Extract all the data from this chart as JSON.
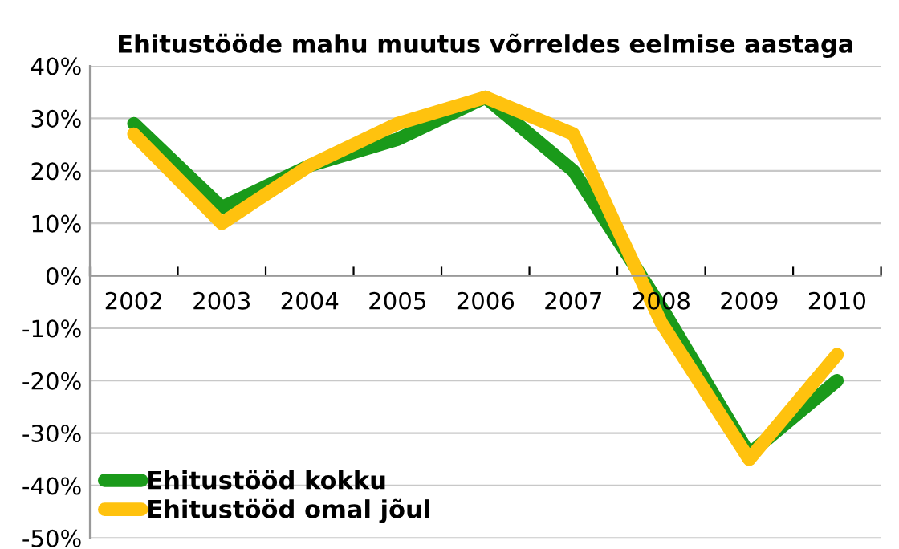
{
  "chart_data": {
    "type": "line",
    "title": "Ehitustööde mahu muutus võrreldes eelmise aastaga",
    "categories": [
      "2002",
      "2003",
      "2004",
      "2005",
      "2006",
      "2007",
      "2008",
      "2009",
      "2010"
    ],
    "series": [
      {
        "name": "Ehitustööd kokku",
        "color": "#1a9a1a",
        "values": [
          29,
          13,
          21,
          26,
          34,
          20,
          -6,
          -34,
          -20
        ]
      },
      {
        "name": "Ehitustööd omal jõul",
        "color": "#ffc20e",
        "values": [
          27,
          10,
          21,
          29,
          34,
          27,
          -9,
          -35,
          -15
        ]
      }
    ],
    "ylim": [
      -50,
      40
    ],
    "yticks": [
      {
        "value": -50,
        "label": "-50%"
      },
      {
        "value": -40,
        "label": "-40%"
      },
      {
        "value": -30,
        "label": "-30%"
      },
      {
        "value": -20,
        "label": "-20%"
      },
      {
        "value": -10,
        "label": "-10%"
      },
      {
        "value": 0,
        "label": "0%"
      },
      {
        "value": 10,
        "label": "10%"
      },
      {
        "value": 20,
        "label": "20%"
      },
      {
        "value": 30,
        "label": "30%"
      },
      {
        "value": 40,
        "label": "40%"
      }
    ],
    "grid": "y",
    "legend": "bottom left",
    "marker": "none",
    "line_style": "solid"
  }
}
